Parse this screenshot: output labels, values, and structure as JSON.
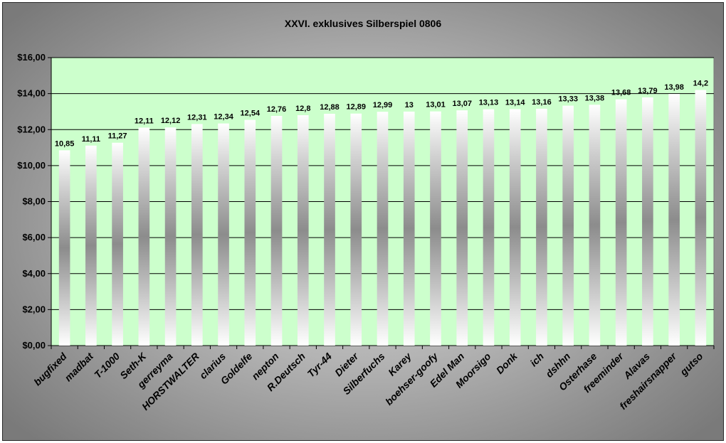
{
  "chart_data": {
    "type": "bar",
    "title": "XXVI. exklusives Silberspiel 0806",
    "xlabel": "",
    "ylabel": "",
    "ylim": [
      0,
      16
    ],
    "y_ticks": [
      "$0,00",
      "$2,00",
      "$4,00",
      "$6,00",
      "$8,00",
      "$10,00",
      "$12,00",
      "$14,00",
      "$16,00"
    ],
    "grid": true,
    "legend": "none",
    "plot_background": "#ccffcc",
    "frame_color": "#b0b0b0",
    "categories": [
      "bugfixed",
      "madbat",
      "T-1000",
      "Seth-K",
      "gerreyma",
      "HORSTWALTER",
      "clarius",
      "Goldelfe",
      "nepton",
      "R.Deutsch",
      "Tyr-44",
      "Dieter",
      "Silberfuchs",
      "Karey",
      "boehser-goofy",
      "Edel Man",
      "Moorsigo",
      "Donk",
      "ich",
      "dshhn",
      "Osterhase",
      "freeminder",
      "Alavas",
      "freshairsnapper",
      "gutso"
    ],
    "values": [
      10.85,
      11.11,
      11.27,
      12.11,
      12.12,
      12.31,
      12.34,
      12.54,
      12.76,
      12.8,
      12.88,
      12.89,
      12.99,
      13,
      13.01,
      13.07,
      13.13,
      13.14,
      13.16,
      13.33,
      13.38,
      13.68,
      13.79,
      13.98,
      14.2
    ],
    "value_labels": [
      "10,85",
      "11,11",
      "11,27",
      "12,11",
      "12,12",
      "12,31",
      "12,34",
      "12,54",
      "12,76",
      "12,8",
      "12,88",
      "12,89",
      "12,99",
      "13",
      "13,01",
      "13,07",
      "13,13",
      "13,14",
      "13,16",
      "13,33",
      "13,38",
      "13,68",
      "13,79",
      "13,98",
      "14,2"
    ]
  }
}
